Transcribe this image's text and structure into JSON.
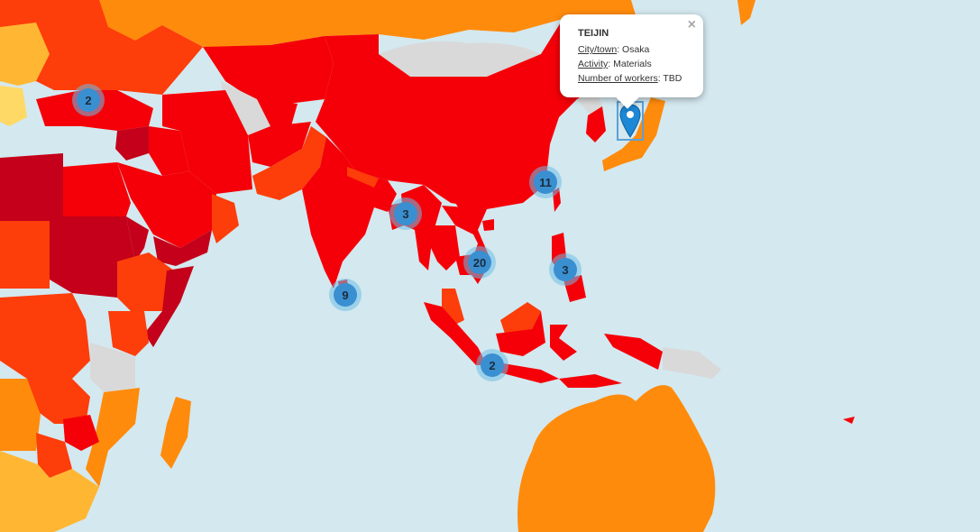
{
  "popup": {
    "title": "TEIJIN",
    "fields": [
      {
        "label": "City/town",
        "sep": ": ",
        "value": "Osaka"
      },
      {
        "label": "Activity",
        "sep": ": ",
        "value": "Materials"
      },
      {
        "label": "Number of workers",
        "sep": ": ",
        "value": "TBD"
      }
    ],
    "close": "×"
  },
  "clusters": [
    {
      "id": "turkey",
      "count": "2"
    },
    {
      "id": "south-china",
      "count": "11"
    },
    {
      "id": "bangladesh-myanmar",
      "count": "3"
    },
    {
      "id": "mainland-southeast-asia",
      "count": "20"
    },
    {
      "id": "philippines",
      "count": "3"
    },
    {
      "id": "sri-lanka",
      "count": "9"
    },
    {
      "id": "java",
      "count": "2"
    }
  ],
  "marker_icon": "map-pin-icon",
  "colors": {
    "sea": "#d4e8ef",
    "no_data": "#d9d9d9",
    "dark_red": "#c4001a",
    "red": "#f50008",
    "red_orange": "#fd3d0a",
    "orange": "#ff8b0c",
    "light_orange": "#ffb733",
    "yellow": "#ffd966",
    "cluster": "#3a8fd1",
    "marker": "#1c88d6"
  }
}
